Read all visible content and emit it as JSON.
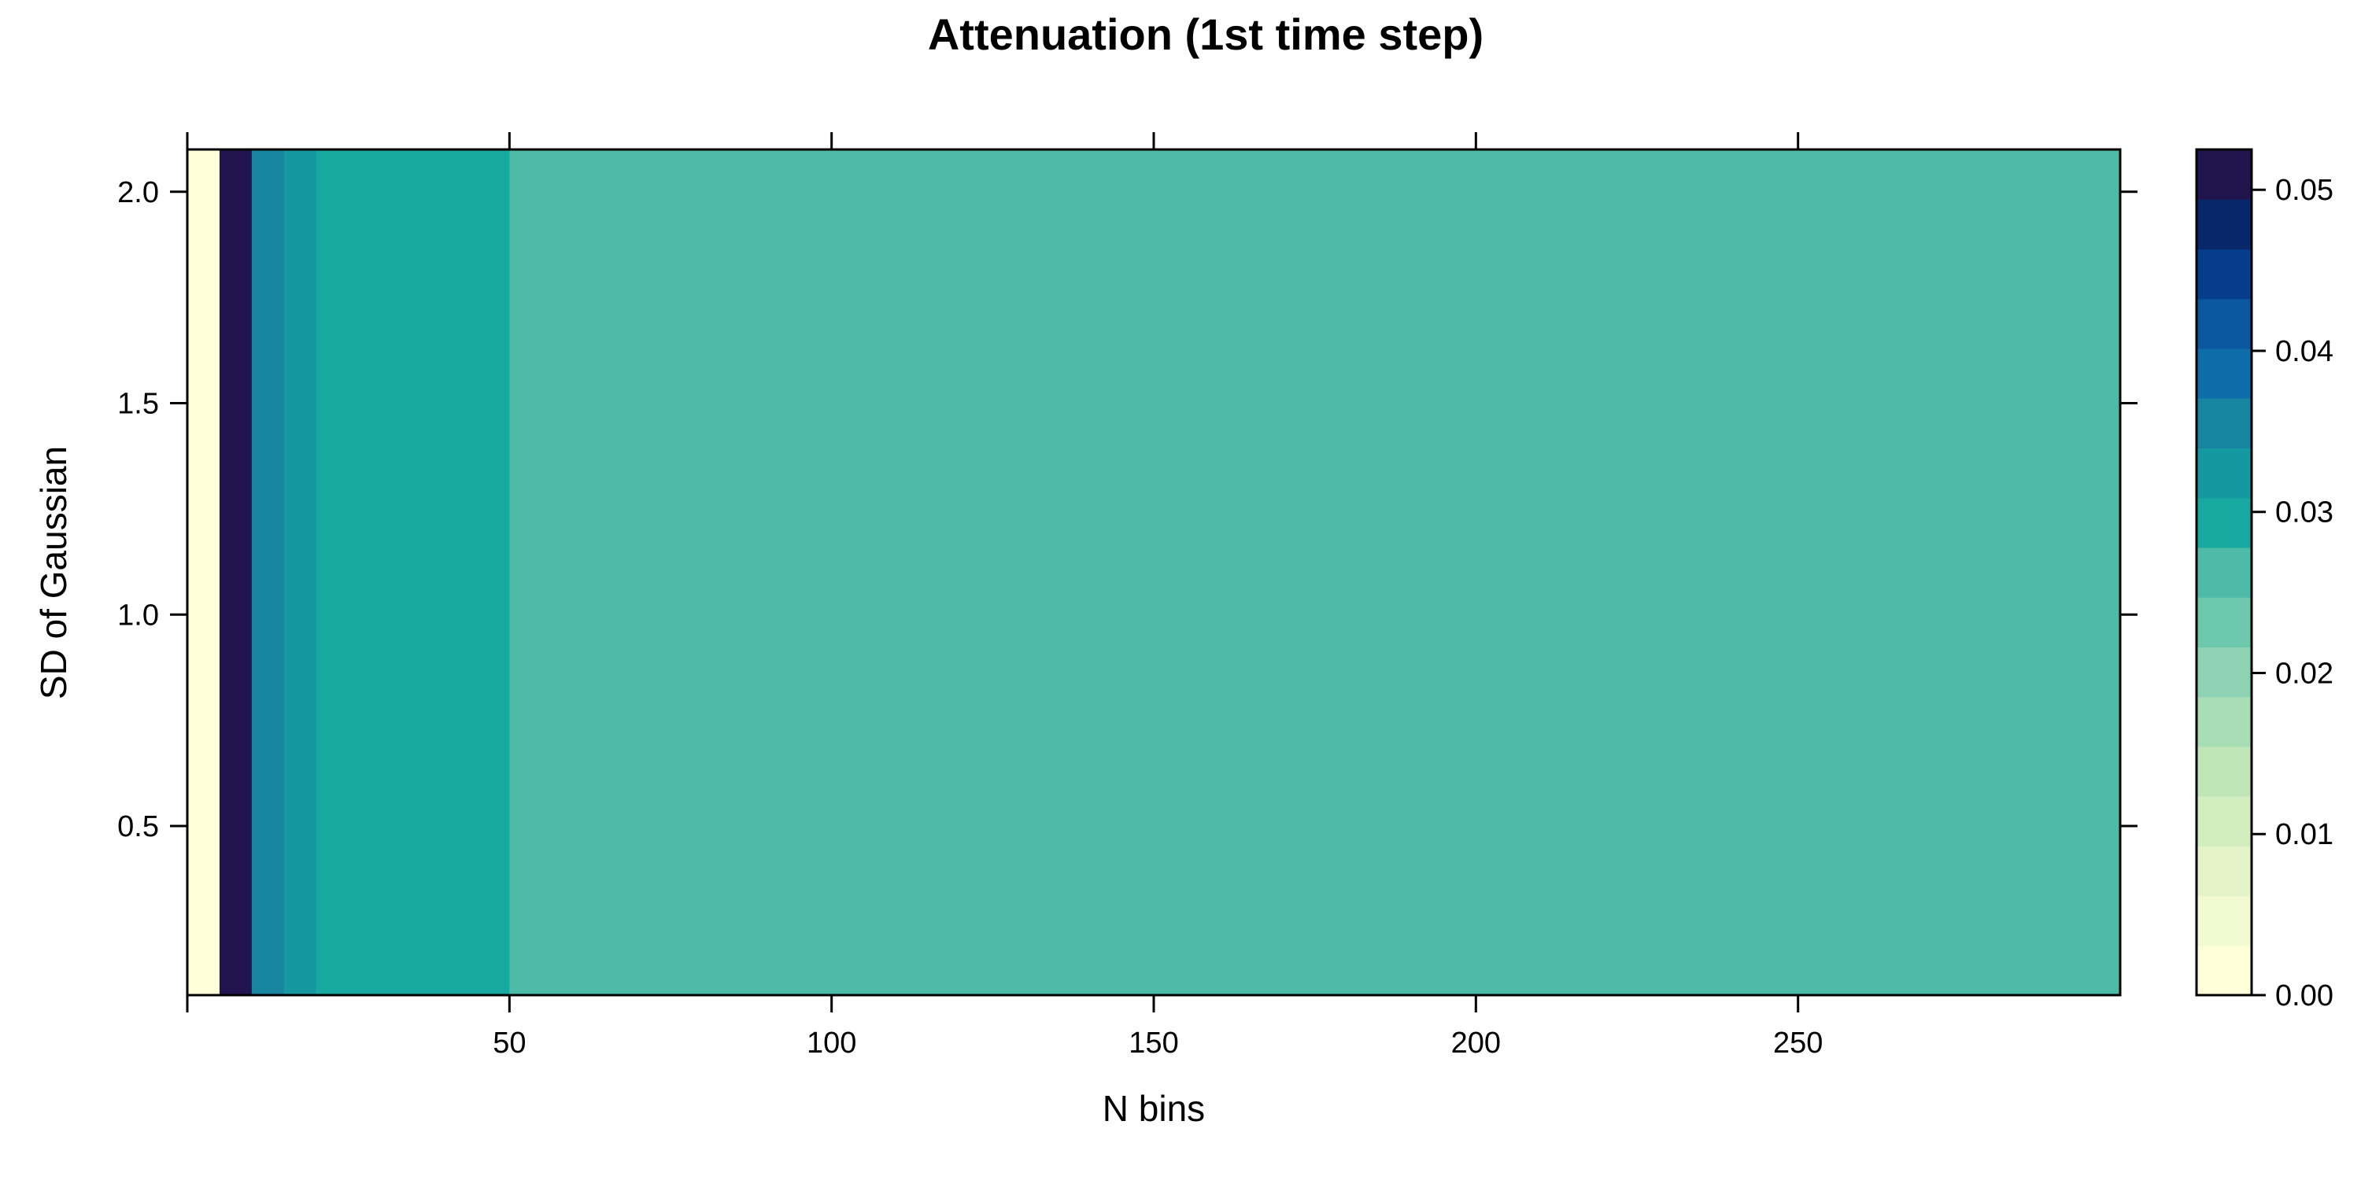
{
  "chart_data": {
    "type": "heatmap",
    "title": "Attenuation (1st time step)",
    "xlabel": "N bins",
    "ylabel": "SD of Gaussian",
    "xlim": [
      0,
      300
    ],
    "ylim": [
      0.1,
      2.1
    ],
    "x_ticks": [
      50,
      100,
      150,
      200,
      250
    ],
    "x_tick_labels": [
      "50",
      "100",
      "150",
      "200",
      "250"
    ],
    "y_ticks": [
      0.5,
      1.0,
      1.5,
      2.0
    ],
    "y_tick_labels": [
      "0.5",
      "1.0",
      "1.5",
      "2.0"
    ],
    "cells": [
      {
        "x0": 0,
        "x1": 5,
        "value": 0.0
      },
      {
        "x0": 5,
        "x1": 10,
        "value": 0.05
      },
      {
        "x0": 10,
        "x1": 15,
        "value": 0.035
      },
      {
        "x0": 15,
        "x1": 20,
        "value": 0.032
      },
      {
        "x0": 20,
        "x1": 50,
        "value": 0.029
      },
      {
        "x0": 50,
        "x1": 300,
        "value": 0.027
      }
    ],
    "colorbar": {
      "min": 0.0,
      "max": 0.0525,
      "tick_values": [
        0.0,
        0.01,
        0.02,
        0.03,
        0.04,
        0.05
      ],
      "tick_labels": [
        "0.00",
        "0.01",
        "0.02",
        "0.03",
        "0.04",
        "0.05"
      ],
      "colors": [
        "#ffffd9",
        "#f2fad0",
        "#e4f4c6",
        "#d3eebe",
        "#c0e6b8",
        "#a9ddb6",
        "#8dd2b3",
        "#6ec8ad",
        "#4ebba9",
        "#17a99f",
        "#1698a0",
        "#1885a0",
        "#0f6eaa",
        "#0b57a0",
        "#063d8d",
        "#08266a",
        "#22154f"
      ]
    },
    "legend": "colorbar-right",
    "grid": false
  }
}
